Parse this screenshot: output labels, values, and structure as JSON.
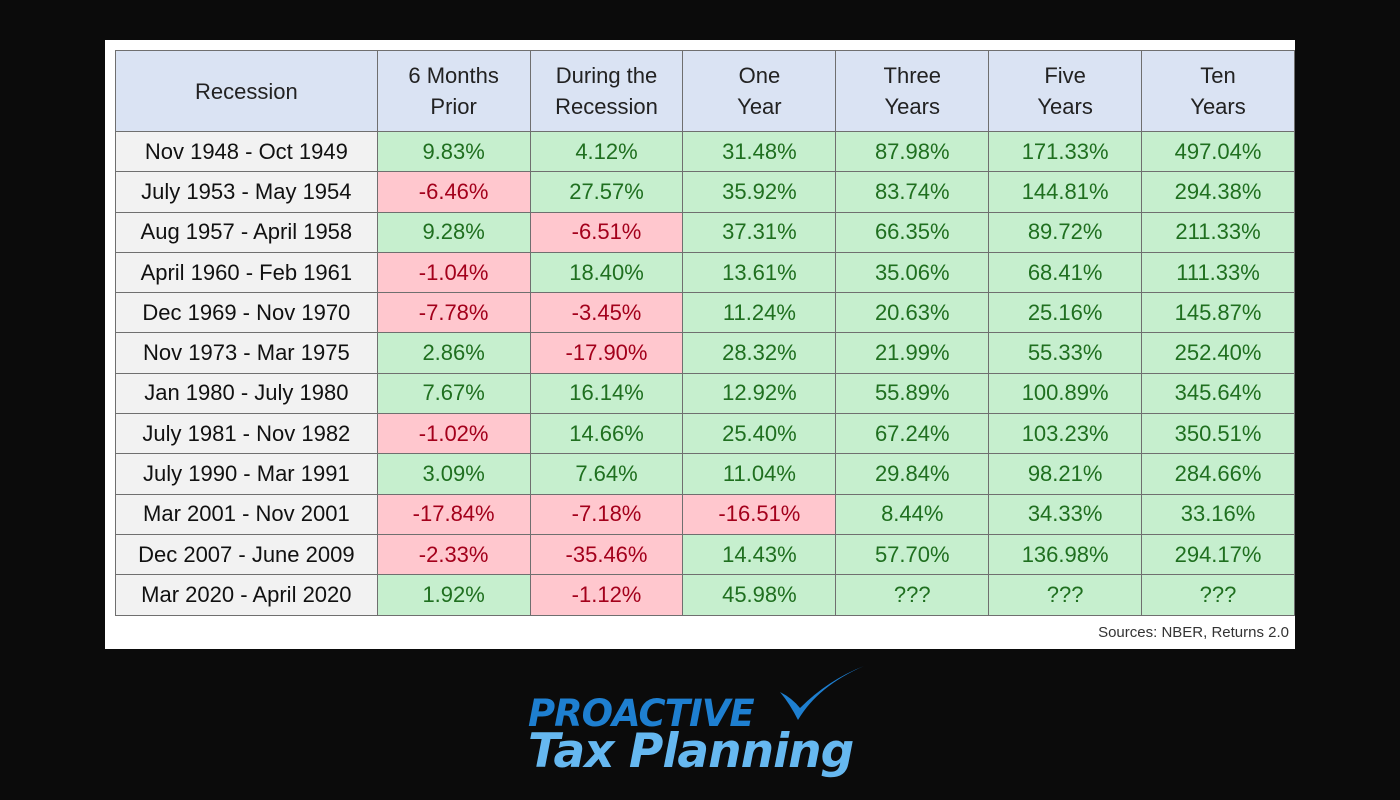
{
  "chart_data": {
    "type": "table",
    "columns": [
      "Recession",
      "6 Months\nPrior",
      "During the\nRecession",
      "One\nYear",
      "Three\nYears",
      "Five\nYears",
      "Ten\nYears"
    ],
    "rows": [
      [
        "Nov 1948 - Oct 1949",
        "9.83%",
        "4.12%",
        "31.48%",
        "87.98%",
        "171.33%",
        "497.04%"
      ],
      [
        "July 1953 - May 1954",
        "-6.46%",
        "27.57%",
        "35.92%",
        "83.74%",
        "144.81%",
        "294.38%"
      ],
      [
        "Aug 1957 - April 1958",
        "9.28%",
        "-6.51%",
        "37.31%",
        "66.35%",
        "89.72%",
        "211.33%"
      ],
      [
        "April 1960 - Feb 1961",
        "-1.04%",
        "18.40%",
        "13.61%",
        "35.06%",
        "68.41%",
        "111.33%"
      ],
      [
        "Dec 1969 - Nov 1970",
        "-7.78%",
        "-3.45%",
        "11.24%",
        "20.63%",
        "25.16%",
        "145.87%"
      ],
      [
        "Nov 1973 - Mar 1975",
        "2.86%",
        "-17.90%",
        "28.32%",
        "21.99%",
        "55.33%",
        "252.40%"
      ],
      [
        "Jan 1980 - July 1980",
        "7.67%",
        "16.14%",
        "12.92%",
        "55.89%",
        "100.89%",
        "345.64%"
      ],
      [
        "July 1981 - Nov 1982",
        "-1.02%",
        "14.66%",
        "25.40%",
        "67.24%",
        "103.23%",
        "350.51%"
      ],
      [
        "July 1990 - Mar 1991",
        "3.09%",
        "7.64%",
        "11.04%",
        "29.84%",
        "98.21%",
        "284.66%"
      ],
      [
        "Mar 2001 - Nov 2001",
        "-17.84%",
        "-7.18%",
        "-16.51%",
        "8.44%",
        "34.33%",
        "33.16%"
      ],
      [
        "Dec 2007 - June 2009",
        "-2.33%",
        "-35.46%",
        "14.43%",
        "57.70%",
        "136.98%",
        "294.17%"
      ],
      [
        "Mar 2020 - April 2020",
        "1.92%",
        "-1.12%",
        "45.98%",
        "???",
        "???",
        "???"
      ]
    ],
    "colors": {
      "header_bg": "#dae3f3",
      "positive_bg": "#c6efce",
      "positive_text": "#1f6f1f",
      "negative_bg": "#ffc7ce",
      "negative_text": "#a3001b",
      "label_bg": "#f2f2f2"
    }
  },
  "source_note": "Sources: NBER, Returns 2.0",
  "logo": {
    "line1": "PROACTIVE",
    "line2": "Tax Planning",
    "icon": "checkmark-icon"
  }
}
